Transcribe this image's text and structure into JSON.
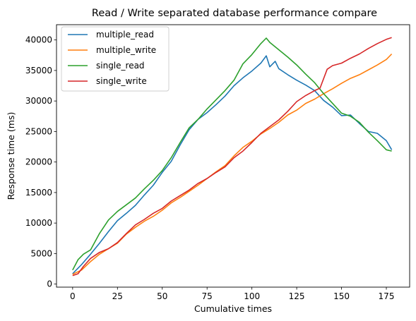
{
  "chart_data": {
    "type": "line",
    "title": "Read / Write separated database performance compare",
    "xlabel": "Cumulative times",
    "ylabel": "Response time (ms)",
    "xlim": [
      -9,
      188
    ],
    "ylim": [
      -500,
      42500
    ],
    "xticks": [
      0,
      25,
      50,
      75,
      100,
      125,
      150,
      175
    ],
    "yticks": [
      0,
      5000,
      10000,
      15000,
      20000,
      25000,
      30000,
      35000,
      40000
    ],
    "grid": false,
    "legend_position": "top-left",
    "series": [
      {
        "name": "multiple_read",
        "color": "#1f77b4",
        "points": [
          [
            0,
            1700
          ],
          [
            5,
            3200
          ],
          [
            10,
            4900
          ],
          [
            15,
            6700
          ],
          [
            20,
            8600
          ],
          [
            25,
            10400
          ],
          [
            30,
            11600
          ],
          [
            35,
            12900
          ],
          [
            40,
            14600
          ],
          [
            45,
            16200
          ],
          [
            50,
            18300
          ],
          [
            55,
            20100
          ],
          [
            60,
            22800
          ],
          [
            65,
            25300
          ],
          [
            70,
            27000
          ],
          [
            75,
            28100
          ],
          [
            80,
            29400
          ],
          [
            85,
            30800
          ],
          [
            90,
            32500
          ],
          [
            95,
            33800
          ],
          [
            100,
            34900
          ],
          [
            105,
            36200
          ],
          [
            108,
            37400
          ],
          [
            110,
            35600
          ],
          [
            113,
            36500
          ],
          [
            115,
            35300
          ],
          [
            120,
            34300
          ],
          [
            125,
            33400
          ],
          [
            130,
            32600
          ],
          [
            135,
            31700
          ],
          [
            140,
            30100
          ],
          [
            145,
            29000
          ],
          [
            150,
            27600
          ],
          [
            155,
            27700
          ],
          [
            160,
            26300
          ],
          [
            165,
            25000
          ],
          [
            170,
            24700
          ],
          [
            175,
            23500
          ],
          [
            178,
            22000
          ]
        ]
      },
      {
        "name": "multiple_write",
        "color": "#ff7f0e",
        "points": [
          [
            0,
            1600
          ],
          [
            5,
            2300
          ],
          [
            10,
            3700
          ],
          [
            15,
            4900
          ],
          [
            20,
            5800
          ],
          [
            25,
            6700
          ],
          [
            30,
            8200
          ],
          [
            35,
            9300
          ],
          [
            40,
            10300
          ],
          [
            45,
            11100
          ],
          [
            50,
            12100
          ],
          [
            55,
            13300
          ],
          [
            60,
            14200
          ],
          [
            65,
            15200
          ],
          [
            70,
            16200
          ],
          [
            75,
            17300
          ],
          [
            80,
            18400
          ],
          [
            85,
            19400
          ],
          [
            90,
            21000
          ],
          [
            95,
            22400
          ],
          [
            100,
            23400
          ],
          [
            105,
            24600
          ],
          [
            110,
            25500
          ],
          [
            115,
            26500
          ],
          [
            120,
            27700
          ],
          [
            125,
            28500
          ],
          [
            130,
            29600
          ],
          [
            135,
            30300
          ],
          [
            140,
            31200
          ],
          [
            145,
            32000
          ],
          [
            150,
            32900
          ],
          [
            155,
            33700
          ],
          [
            160,
            34300
          ],
          [
            165,
            35100
          ],
          [
            170,
            35900
          ],
          [
            175,
            36800
          ],
          [
            178,
            37700
          ]
        ]
      },
      {
        "name": "single_read",
        "color": "#2ca02c",
        "points": [
          [
            0,
            2300
          ],
          [
            3,
            4000
          ],
          [
            6,
            4900
          ],
          [
            10,
            5600
          ],
          [
            15,
            8300
          ],
          [
            20,
            10500
          ],
          [
            25,
            11900
          ],
          [
            30,
            13000
          ],
          [
            35,
            14100
          ],
          [
            40,
            15600
          ],
          [
            45,
            17000
          ],
          [
            50,
            18600
          ],
          [
            55,
            20700
          ],
          [
            60,
            23200
          ],
          [
            65,
            25600
          ],
          [
            70,
            27000
          ],
          [
            75,
            28700
          ],
          [
            80,
            30200
          ],
          [
            85,
            31700
          ],
          [
            90,
            33400
          ],
          [
            95,
            36100
          ],
          [
            100,
            37600
          ],
          [
            105,
            39400
          ],
          [
            108,
            40300
          ],
          [
            110,
            39600
          ],
          [
            115,
            38400
          ],
          [
            120,
            37200
          ],
          [
            125,
            35900
          ],
          [
            130,
            34400
          ],
          [
            135,
            33000
          ],
          [
            140,
            31200
          ],
          [
            145,
            29600
          ],
          [
            150,
            28000
          ],
          [
            155,
            27500
          ],
          [
            160,
            26500
          ],
          [
            165,
            24900
          ],
          [
            170,
            23500
          ],
          [
            175,
            22000
          ],
          [
            178,
            21800
          ]
        ]
      },
      {
        "name": "single_write",
        "color": "#d62728",
        "points": [
          [
            0,
            1400
          ],
          [
            3,
            1700
          ],
          [
            6,
            2900
          ],
          [
            10,
            4200
          ],
          [
            15,
            5200
          ],
          [
            20,
            5800
          ],
          [
            25,
            6800
          ],
          [
            30,
            8300
          ],
          [
            35,
            9700
          ],
          [
            40,
            10600
          ],
          [
            45,
            11600
          ],
          [
            50,
            12400
          ],
          [
            55,
            13600
          ],
          [
            60,
            14500
          ],
          [
            65,
            15400
          ],
          [
            70,
            16500
          ],
          [
            75,
            17300
          ],
          [
            80,
            18300
          ],
          [
            85,
            19200
          ],
          [
            90,
            20700
          ],
          [
            95,
            21800
          ],
          [
            100,
            23200
          ],
          [
            105,
            24700
          ],
          [
            110,
            25800
          ],
          [
            115,
            26900
          ],
          [
            120,
            28300
          ],
          [
            125,
            29900
          ],
          [
            130,
            30900
          ],
          [
            135,
            31700
          ],
          [
            138,
            32100
          ],
          [
            142,
            35200
          ],
          [
            145,
            35800
          ],
          [
            150,
            36200
          ],
          [
            155,
            37000
          ],
          [
            160,
            37700
          ],
          [
            165,
            38600
          ],
          [
            170,
            39400
          ],
          [
            175,
            40100
          ],
          [
            178,
            40400
          ]
        ]
      }
    ]
  }
}
